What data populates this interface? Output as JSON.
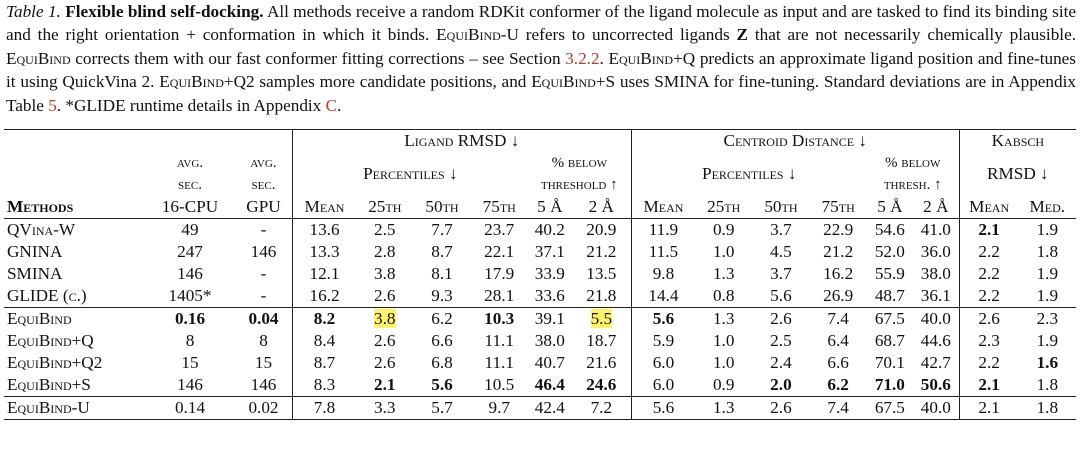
{
  "caption": {
    "label": "Table 1.",
    "title": "Flexible blind self-docking.",
    "p1": " All methods receive a random RDKit conformer of the ligand molecule as input and are tasked to find its binding site and the right orientation + conformation in which it binds. ",
    "m1": "EquiBind-U",
    "p2": " refers to uncorrected ligands ",
    "z": "Z",
    "p3": " that are not necessarily chemically plausible. ",
    "m2": "EquiBind",
    "p4": " corrects them with our fast conformer fitting corrections – see Section ",
    "sec": "3.2.2",
    "p5": ". ",
    "m3": "EquiBind+Q",
    "p6": " predicts an approximate ligand position and fine-tunes it using QuickVina 2. ",
    "m4": "EquiBind+Q2",
    "p7": " samples more candidate positions, and ",
    "m5": "EquiBind+S",
    "p8": " uses SMINA for fine-tuning. Standard deviations are in Appendix Table ",
    "tab": "5",
    "p9": ". *GLIDE runtime details in Appendix ",
    "app": "C",
    "p10": "."
  },
  "header": {
    "ligand_rmsd": "Ligand RMSD ↓",
    "centroid": "Centroid Distance ↓",
    "kabsch": "Kabsch",
    "avg1": "avg.",
    "sec1": "sec.",
    "cpu": "16-CPU",
    "avg2": "avg.",
    "sec2": "sec.",
    "gpu": "GPU",
    "percentiles1": "Percentiles ↓",
    "below1a": "% below",
    "below1b": "threshold ↑",
    "percentiles2": "Percentiles ↓",
    "below2a": "% below",
    "below2b": "thresh. ↑",
    "rmsd": "RMSD ↓",
    "methods": "Methods",
    "cols": [
      "Mean",
      "25th",
      "50th",
      "75th",
      "5 Å",
      "2 Å",
      "Mean",
      "25th",
      "50th",
      "75th",
      "5 Å",
      "2 Å",
      "Mean",
      "Med."
    ]
  },
  "rows": [
    {
      "m": "QVina-W",
      "cpu": "49",
      "gpu": "-",
      "v": [
        "13.6",
        "2.5",
        "7.7",
        "23.7",
        "40.2",
        "20.9",
        "11.9",
        "0.9",
        "3.7",
        "22.9",
        "54.6",
        "41.0",
        "2.1",
        "1.9"
      ]
    },
    {
      "m": "GNINA",
      "cpu": "247",
      "gpu": "146",
      "v": [
        "13.3",
        "2.8",
        "8.7",
        "22.1",
        "37.1",
        "21.2",
        "11.5",
        "1.0",
        "4.5",
        "21.2",
        "52.0",
        "36.0",
        "2.2",
        "1.8"
      ]
    },
    {
      "m": "SMINA",
      "cpu": "146",
      "gpu": "-",
      "v": [
        "12.1",
        "3.8",
        "8.1",
        "17.9",
        "33.9",
        "13.5",
        "9.8",
        "1.3",
        "3.7",
        "16.2",
        "55.9",
        "38.0",
        "2.2",
        "1.9"
      ]
    },
    {
      "m": "GLIDE (c.)",
      "cpu": "1405*",
      "gpu": "-",
      "v": [
        "16.2",
        "2.6",
        "9.3",
        "28.1",
        "33.6",
        "21.8",
        "14.4",
        "0.8",
        "5.6",
        "26.9",
        "48.7",
        "36.1",
        "2.2",
        "1.9"
      ]
    },
    {
      "m": "EquiBind",
      "cpu": "0.16",
      "gpu": "0.04",
      "v": [
        "8.2",
        "3.8",
        "6.2",
        "10.3",
        "39.1",
        "5.5",
        "5.6",
        "1.3",
        "2.6",
        "7.4",
        "67.5",
        "40.0",
        "2.6",
        "2.3"
      ]
    },
    {
      "m": "EquiBind+Q",
      "cpu": "8",
      "gpu": "8",
      "v": [
        "8.4",
        "2.6",
        "6.6",
        "11.1",
        "38.0",
        "18.7",
        "5.9",
        "1.0",
        "2.5",
        "6.4",
        "68.7",
        "44.6",
        "2.3",
        "1.9"
      ]
    },
    {
      "m": "EquiBind+Q2",
      "cpu": "15",
      "gpu": "15",
      "v": [
        "8.7",
        "2.6",
        "6.8",
        "11.1",
        "40.7",
        "21.6",
        "6.0",
        "1.0",
        "2.4",
        "6.6",
        "70.1",
        "42.7",
        "2.2",
        "1.6"
      ]
    },
    {
      "m": "EquiBind+S",
      "cpu": "146",
      "gpu": "146",
      "v": [
        "8.3",
        "2.1",
        "5.6",
        "10.5",
        "46.4",
        "24.6",
        "6.0",
        "0.9",
        "2.0",
        "6.2",
        "71.0",
        "50.6",
        "2.1",
        "1.8"
      ]
    },
    {
      "m": "EquiBind-U",
      "cpu": "0.14",
      "gpu": "0.02",
      "v": [
        "7.8",
        "3.3",
        "5.7",
        "9.7",
        "42.4",
        "7.2",
        "5.6",
        "1.3",
        "2.6",
        "7.4",
        "67.5",
        "40.0",
        "2.1",
        "1.8"
      ]
    }
  ]
}
